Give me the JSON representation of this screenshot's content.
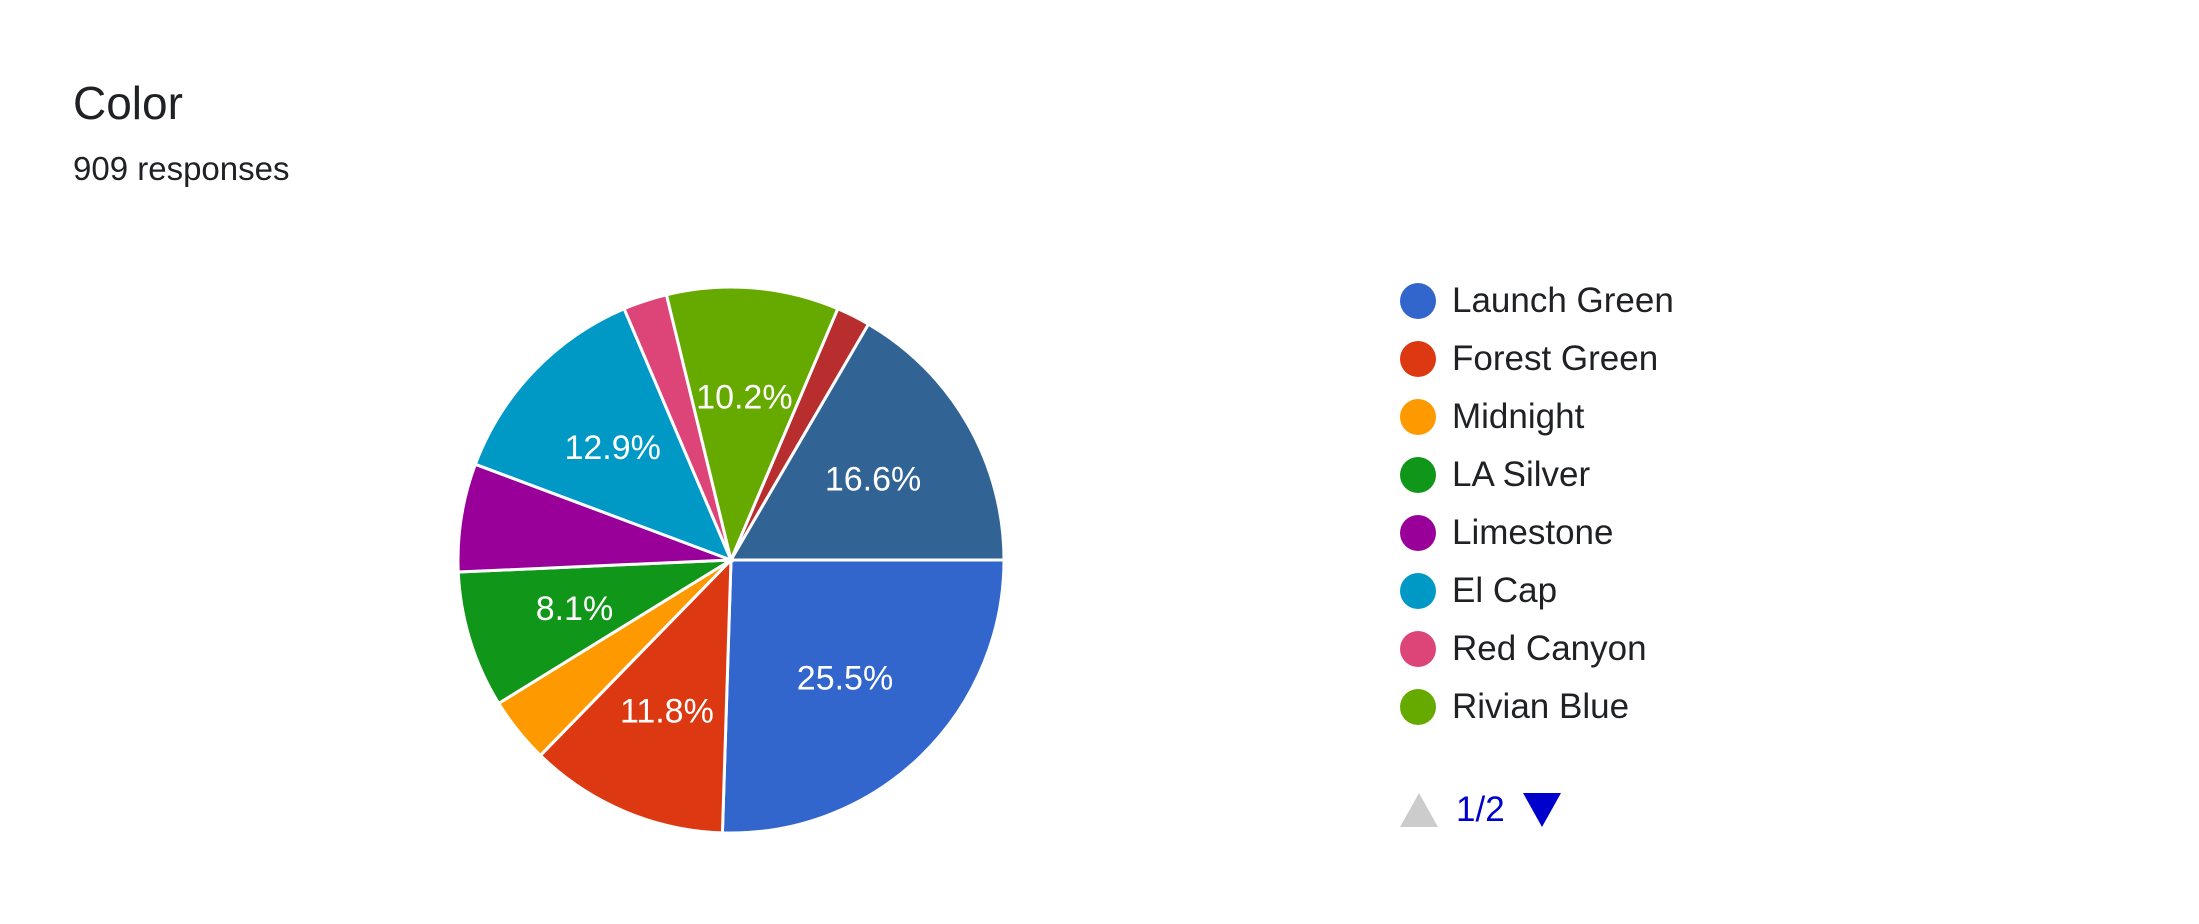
{
  "header": {
    "title": "Color",
    "responses": "909 responses"
  },
  "chart_data": {
    "type": "pie",
    "slices": [
      {
        "label": "Launch Green",
        "percent": 25.5,
        "color": "#3366cc",
        "display": "25.5%"
      },
      {
        "label": "Forest Green",
        "percent": 11.8,
        "color": "#dc3912",
        "display": "11.8%"
      },
      {
        "label": "Midnight",
        "percent": 3.9,
        "color": "#ff9900",
        "display": ""
      },
      {
        "label": "LA Silver",
        "percent": 8.1,
        "color": "#109618",
        "display": "8.1%"
      },
      {
        "label": "Limestone",
        "percent": 6.4,
        "color": "#990099",
        "display": ""
      },
      {
        "label": "El Cap",
        "percent": 12.9,
        "color": "#0099c6",
        "display": "12.9%"
      },
      {
        "label": "Red Canyon",
        "percent": 2.6,
        "color": "#dd4477",
        "display": ""
      },
      {
        "label": "Rivian Blue",
        "percent": 10.2,
        "color": "#66aa00",
        "display": "10.2%"
      },
      {
        "label": "",
        "percent": 2.0,
        "color": "#b82e2e",
        "display": ""
      },
      {
        "label": "",
        "percent": 16.6,
        "color": "#316395",
        "display": "16.6%"
      }
    ],
    "legend_position": "right"
  },
  "legend": {
    "items": [
      {
        "label": "Launch Green",
        "color": "#3366cc"
      },
      {
        "label": "Forest Green",
        "color": "#dc3912"
      },
      {
        "label": "Midnight",
        "color": "#ff9900"
      },
      {
        "label": "LA Silver",
        "color": "#109618"
      },
      {
        "label": "Limestone",
        "color": "#990099"
      },
      {
        "label": "El Cap",
        "color": "#0099c6"
      },
      {
        "label": "Red Canyon",
        "color": "#dd4477"
      },
      {
        "label": "Rivian Blue",
        "color": "#66aa00"
      }
    ]
  },
  "pager": {
    "text": "1/2"
  }
}
